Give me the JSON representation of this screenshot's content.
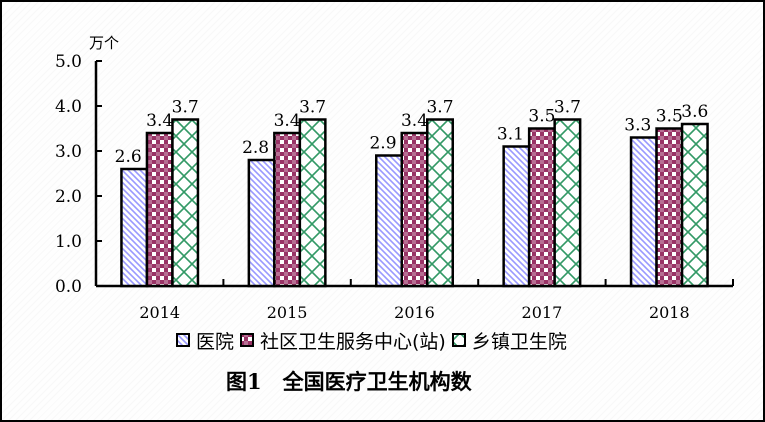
{
  "chart_data": {
    "type": "bar",
    "title": "图1　全国医疗卫生机构数",
    "xlabel": "",
    "ylabel": "万个",
    "ylim": [
      0,
      5
    ],
    "yticks": [
      "0.0",
      "1.0",
      "2.0",
      "3.0",
      "4.0",
      "5.0"
    ],
    "grid": false,
    "legend_position": "bottom",
    "categories": [
      "2014",
      "2015",
      "2016",
      "2017",
      "2018"
    ],
    "series": [
      {
        "name": "医院",
        "values": [
          2.6,
          2.8,
          2.9,
          3.1,
          3.3
        ],
        "color": "#9999ff",
        "pattern": "diagonal-stripes"
      },
      {
        "name": "社区卫生服务中心(站)",
        "values": [
          3.4,
          3.4,
          3.4,
          3.5,
          3.5
        ],
        "color": "#993366",
        "pattern": "checkerboard"
      },
      {
        "name": "乡镇卫生院",
        "values": [
          3.7,
          3.7,
          3.7,
          3.7,
          3.6
        ],
        "color": "#339966",
        "pattern": "lattice"
      }
    ],
    "data_labels": true
  },
  "chart": {
    "unit_label": "万个",
    "title": "图1　全国医疗卫生机构数"
  },
  "legend": {
    "items": [
      {
        "label": "医院"
      },
      {
        "label": "社区卫生服务中心(站)"
      },
      {
        "label": "乡镇卫生院"
      }
    ]
  }
}
